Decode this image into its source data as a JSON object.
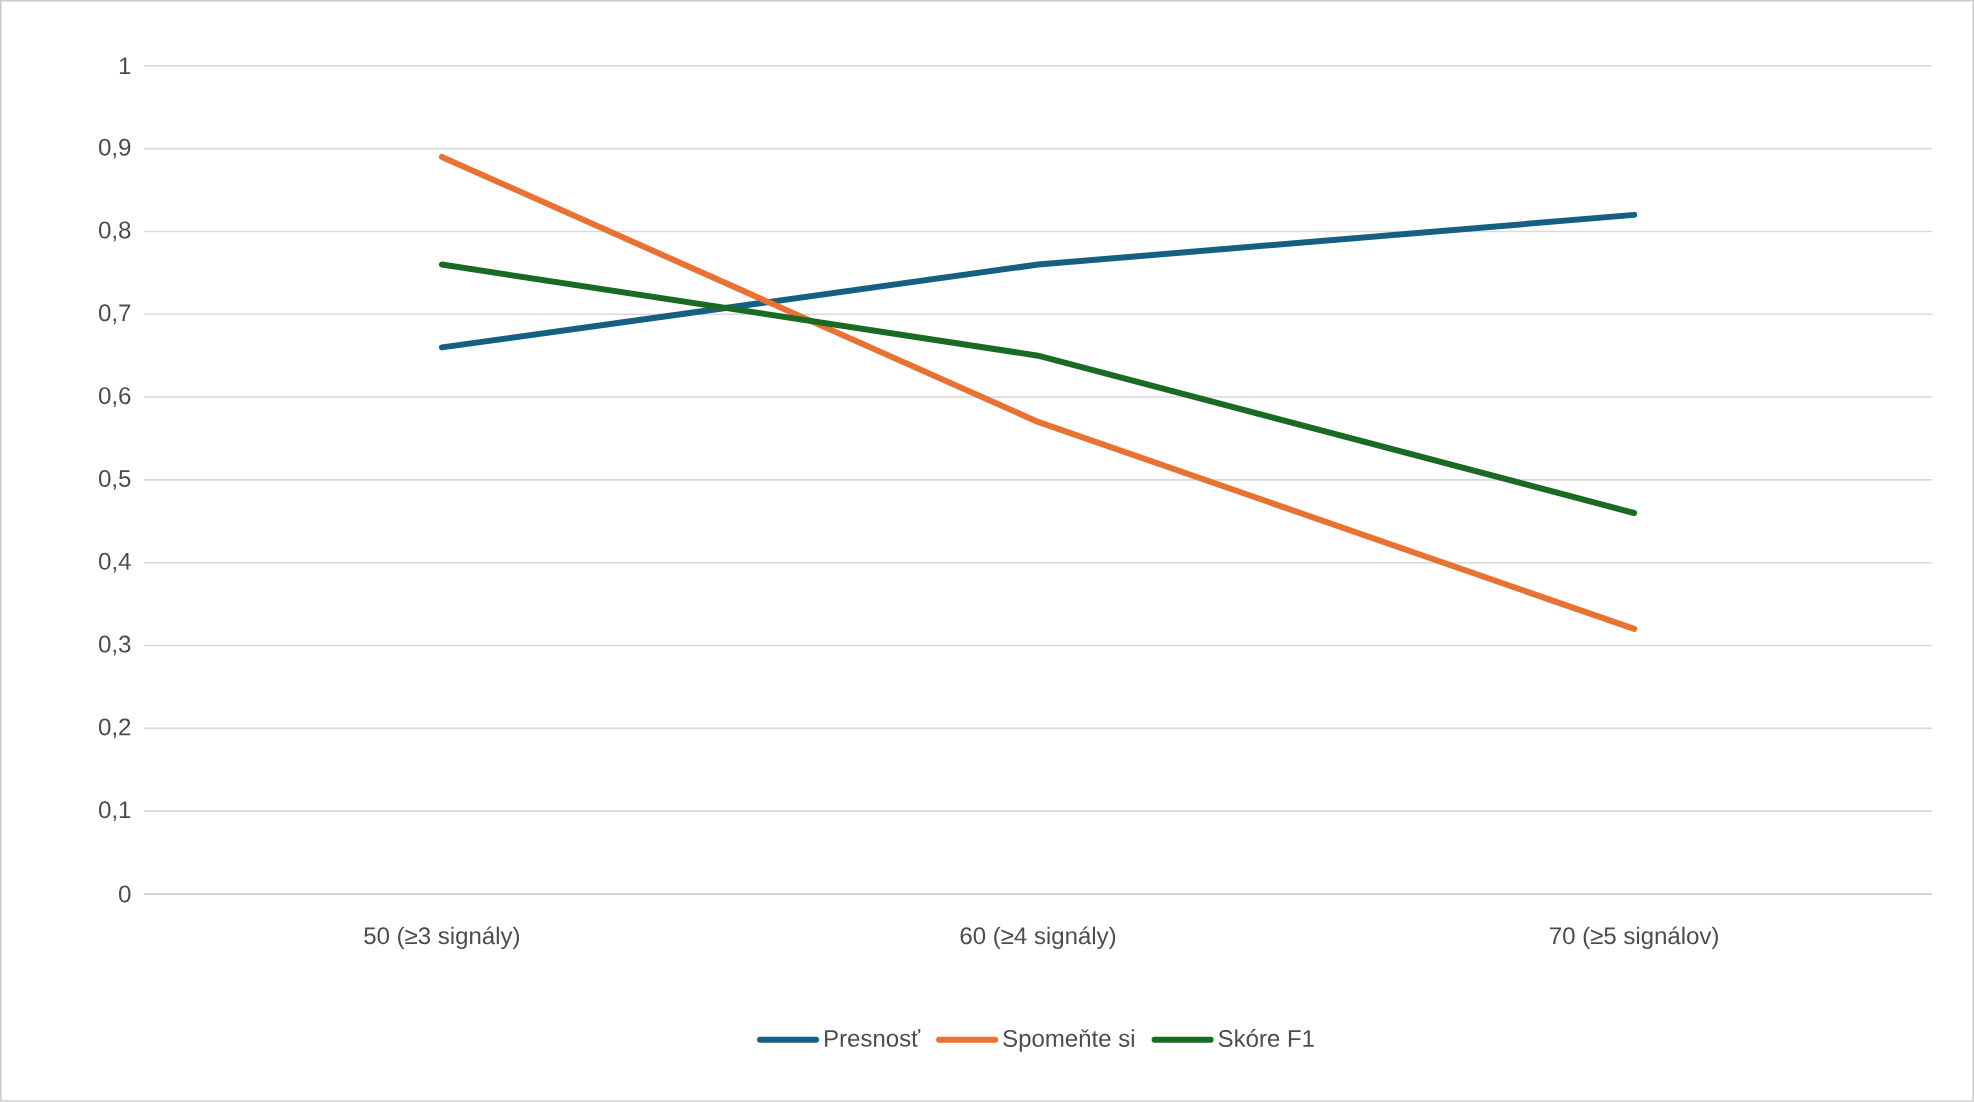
{
  "chart_data": {
    "type": "line",
    "categories": [
      "50 (≥3 signály)",
      "60 (≥4 signály)",
      "70 (≥5 signálov)"
    ],
    "series": [
      {
        "name": "Presnosť",
        "color": "#156082",
        "values": [
          0.66,
          0.76,
          0.82
        ]
      },
      {
        "name": "Spomeňte si",
        "color": "#e97132",
        "values": [
          0.89,
          0.57,
          0.32
        ]
      },
      {
        "name": "Skóre F1",
        "color": "#196b24",
        "values": [
          0.76,
          0.65,
          0.46
        ]
      }
    ],
    "ylim": [
      0,
      1
    ],
    "yticks": [
      {
        "value": 0,
        "label": "0"
      },
      {
        "value": 0.1,
        "label": "0,1"
      },
      {
        "value": 0.2,
        "label": "0,2"
      },
      {
        "value": 0.3,
        "label": "0,3"
      },
      {
        "value": 0.4,
        "label": "0,4"
      },
      {
        "value": 0.5,
        "label": "0,5"
      },
      {
        "value": 0.6,
        "label": "0,6"
      },
      {
        "value": 0.7,
        "label": "0,7"
      },
      {
        "value": 0.8,
        "label": "0,8"
      },
      {
        "value": 0.9,
        "label": "0,9"
      },
      {
        "value": 1,
        "label": "1"
      }
    ],
    "grid": "y",
    "legend": "bottom",
    "marker": "none",
    "line_style": "solid"
  }
}
